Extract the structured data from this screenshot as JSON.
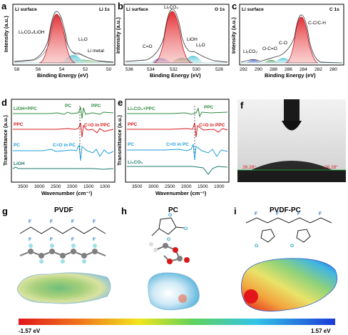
{
  "panels": {
    "a": {
      "letter": "a",
      "header_left": "Li surface",
      "header_right": "Li 1s",
      "peak_labels": [
        "Li₂CO₃/LiOH",
        "Li₂O",
        "Li metal"
      ],
      "ylabel": "Intensity (a.u.)",
      "xlabel": "Binding Energy (eV)",
      "xticks": [
        "58",
        "56",
        "54",
        "52",
        "50"
      ]
    },
    "b": {
      "letter": "b",
      "header_left": "Li surface",
      "header_right": "O 1s",
      "peak_labels": [
        "Li₂CO₃",
        "C=O",
        "LiOH",
        "Li₂O"
      ],
      "ylabel": "Intensity (a.u.)",
      "xlabel": "Binding Energy (eV)",
      "xticks": [
        "536",
        "534",
        "532",
        "530",
        "528"
      ]
    },
    "c": {
      "letter": "c",
      "header_left": "Li surface",
      "header_right": "C 1s",
      "peak_labels": [
        "C-C/C-H",
        "C-O",
        "O-C=O",
        "Li₂CO₃"
      ],
      "ylabel": "Intensity (a.u.)",
      "xlabel": "Binding Energy (eV)",
      "xticks": [
        "292",
        "290",
        "288",
        "286",
        "284",
        "282",
        "280"
      ]
    },
    "d": {
      "letter": "d",
      "series_labels": [
        "LiOH+PPC",
        "PPC",
        "PC",
        "LiOH"
      ],
      "annotations": [
        "PC",
        "PPC",
        "C=O in PPC",
        "C=O in PC"
      ],
      "ylabel": "Transmittance (a.u.)",
      "xlabel": "Wavenumber (cm⁻¹)",
      "xticks": [
        "3500",
        "3000",
        "2500",
        "2000",
        "1500",
        "1000"
      ]
    },
    "e": {
      "letter": "e",
      "series_labels": [
        "Li₂CO₃+PPC",
        "PPC",
        "PC",
        "Li₂CO₃"
      ],
      "annotations": [
        "PPC",
        "C=O in PPC",
        "C=O in PC"
      ],
      "ylabel": "Transmittance (a.u.)",
      "xlabel": "Wavenumber (cm⁻¹)",
      "xticks": [
        "3500",
        "3000",
        "2500",
        "2000",
        "1500",
        "1000"
      ]
    },
    "f": {
      "letter": "f",
      "angle_left": "26.28°",
      "angle_right": "26.28°"
    },
    "g": {
      "letter": "g",
      "title": "PVDF",
      "atom_F": "F"
    },
    "h": {
      "letter": "h",
      "title": "PC",
      "atom_O": "O"
    },
    "i": {
      "letter": "i",
      "title": "PVDF-PC",
      "atom_F": "F",
      "atom_O": "O"
    }
  },
  "colorbar": {
    "min_label": "-1.57 eV",
    "max_label": "1.57 eV"
  },
  "colors": {
    "red": "#d7191c",
    "cyan": "#56c6d9",
    "green": "#2e8b3d",
    "blue": "#1f6fd1",
    "envelope": "#444444"
  }
}
